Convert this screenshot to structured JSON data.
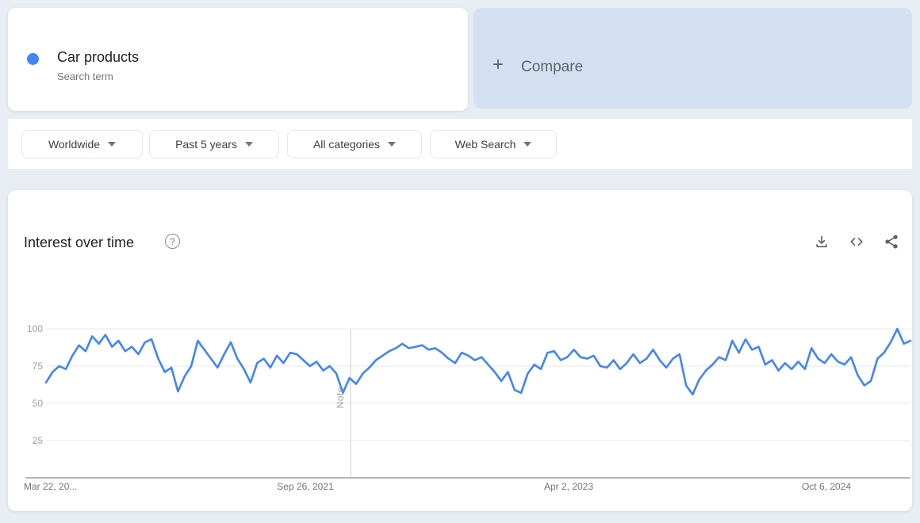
{
  "term_card": {
    "term": "Car products",
    "type_label": "Search term",
    "dot_color": "#4285f4"
  },
  "compare_card": {
    "plus": "+",
    "label": "Compare"
  },
  "filters": [
    {
      "label": "Worldwide"
    },
    {
      "label": "Past 5 years"
    },
    {
      "label": "All categories"
    },
    {
      "label": "Web Search"
    }
  ],
  "chart_header": {
    "title": "Interest over time",
    "help_glyph": "?",
    "actions": [
      "download-icon",
      "embed-code-icon",
      "share-icon"
    ]
  },
  "chart_data": {
    "type": "line",
    "title": "Interest over time",
    "xlabel": "",
    "ylabel": "",
    "ylim": [
      0,
      100
    ],
    "grid": true,
    "legend": "none",
    "line_color": "#4285f4",
    "y_ticks": [
      25,
      50,
      75,
      100
    ],
    "y_tick_labels": [
      "100",
      "75",
      "50",
      "25"
    ],
    "x_tick_labels": [
      "Mar 22, 20...",
      "Sep 26, 2021",
      "Apr 2, 2023",
      "Oct 6, 2024"
    ],
    "note_marker_label": "Note",
    "note_marker_x_fraction": 0.352,
    "series": [
      {
        "name": "Car products",
        "color": "#4285f4",
        "values": [
          64,
          71,
          75,
          73,
          82,
          89,
          85,
          95,
          90,
          96,
          88,
          92,
          85,
          88,
          83,
          91,
          93,
          80,
          71,
          74,
          58,
          68,
          75,
          92,
          86,
          80,
          74,
          83,
          91,
          80,
          73,
          64,
          77,
          80,
          74,
          82,
          77,
          84,
          83,
          79,
          75,
          78,
          72,
          75,
          70,
          57,
          67,
          63,
          70,
          74,
          79,
          82,
          85,
          87,
          90,
          87,
          88,
          89,
          86,
          87,
          84,
          80,
          77,
          84,
          82,
          79,
          81,
          76,
          71,
          65,
          71,
          59,
          57,
          70,
          76,
          73,
          84,
          85,
          79,
          81,
          86,
          81,
          80,
          82,
          75,
          74,
          79,
          73,
          77,
          83,
          77,
          80,
          86,
          79,
          74,
          80,
          83,
          62,
          56,
          66,
          72,
          76,
          81,
          79,
          92,
          84,
          93,
          86,
          88,
          76,
          79,
          72,
          77,
          73,
          78,
          73,
          87,
          80,
          77,
          83,
          78,
          76,
          81,
          69,
          62,
          65,
          80,
          84,
          91,
          100,
          90,
          92
        ]
      }
    ]
  }
}
